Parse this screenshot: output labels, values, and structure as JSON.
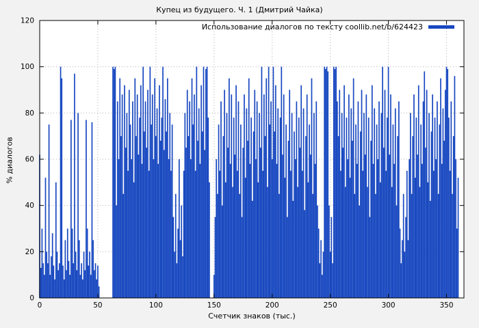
{
  "page": {
    "background": "#f2f2f2",
    "plot_background": "#ffffff"
  },
  "chart_data": {
    "type": "bar",
    "title": "Купец из будущего. Ч. 1 (Дмитрий Чайка)",
    "xlabel": "Счетчик знаков (тыс.)",
    "ylabel": "% диалогов",
    "legend": {
      "label": "Использование диалогов по тексту coollib.net/b/624423",
      "position": "top-right"
    },
    "bar_color": "#1848c0",
    "grid": true,
    "grid_color": "#b0b0b0",
    "xlim": [
      0,
      365
    ],
    "ylim": [
      0,
      120
    ],
    "x_ticks": [
      0,
      50,
      100,
      150,
      200,
      250,
      300,
      350
    ],
    "y_ticks": [
      0,
      20,
      40,
      60,
      80,
      100,
      120
    ],
    "x_start": 0,
    "x_step": 1,
    "values": [
      62,
      13,
      30,
      15,
      10,
      52,
      20,
      15,
      75,
      10,
      18,
      28,
      14,
      8,
      50,
      20,
      12,
      15,
      100,
      95,
      14,
      8,
      25,
      12,
      30,
      16,
      10,
      77,
      30,
      15,
      97,
      20,
      12,
      80,
      25,
      10,
      15,
      8,
      20,
      12,
      77,
      30,
      14,
      20,
      10,
      76,
      25,
      12,
      15,
      8,
      14,
      5,
      0,
      0,
      0,
      0,
      0,
      0,
      0,
      0,
      0,
      0,
      0,
      100,
      99,
      100,
      40,
      85,
      60,
      95,
      70,
      88,
      45,
      92,
      65,
      80,
      55,
      90,
      75,
      60,
      85,
      50,
      95,
      70,
      88,
      62,
      78,
      92,
      58,
      100,
      72,
      85,
      65,
      90,
      55,
      100,
      75,
      88,
      60,
      95,
      70,
      82,
      58,
      92,
      68,
      78,
      100,
      64,
      86,
      72,
      95,
      60,
      80,
      55,
      75,
      35,
      20,
      45,
      15,
      30,
      60,
      25,
      40,
      18,
      55,
      80,
      65,
      90,
      70,
      85,
      60,
      95,
      75,
      88,
      55,
      100,
      68,
      82,
      58,
      92,
      72,
      100,
      64,
      99,
      100,
      78,
      50,
      0,
      0,
      0,
      10,
      35,
      60,
      45,
      75,
      55,
      85,
      40,
      70,
      90,
      50,
      80,
      65,
      95,
      58,
      88,
      48,
      78,
      62,
      92,
      55,
      85,
      45,
      75,
      35,
      65,
      88,
      52,
      82,
      68,
      95,
      58,
      78,
      42,
      72,
      90,
      60,
      85,
      50,
      80,
      65,
      100,
      55,
      88,
      70,
      95,
      48,
      100,
      75,
      85,
      60,
      100,
      72,
      92,
      58,
      82,
      45,
      78,
      100,
      62,
      88,
      52,
      75,
      35,
      68,
      90,
      55,
      80,
      42,
      72,
      60,
      85,
      48,
      78,
      65,
      92,
      55,
      82,
      38,
      70,
      88,
      50,
      75,
      62,
      95,
      45,
      80,
      58,
      85,
      40,
      30,
      15,
      25,
      10,
      20,
      100,
      99,
      100,
      98,
      40,
      20,
      35,
      15,
      100,
      99,
      100,
      85,
      70,
      90,
      55,
      80,
      65,
      92,
      48,
      78,
      60,
      88,
      52,
      82,
      68,
      95,
      45,
      75,
      58,
      85,
      40,
      72,
      90,
      55,
      80,
      62,
      88,
      48,
      78,
      35,
      68,
      92,
      58,
      82,
      45,
      75,
      60,
      85,
      50,
      80,
      100,
      65,
      90,
      55,
      78,
      100,
      62,
      88,
      48,
      75,
      58,
      82,
      40,
      70,
      85,
      30,
      15,
      25,
      45,
      20,
      35,
      55,
      25,
      60,
      80,
      45,
      70,
      88,
      52,
      78,
      62,
      92,
      48,
      75,
      58,
      85,
      98,
      65,
      90,
      50,
      80,
      42,
      72,
      88,
      55,
      78,
      60,
      85,
      45,
      75,
      95,
      58,
      82,
      68,
      90,
      100,
      99,
      78,
      55,
      85,
      45,
      70,
      96,
      60,
      30,
      52
    ]
  }
}
